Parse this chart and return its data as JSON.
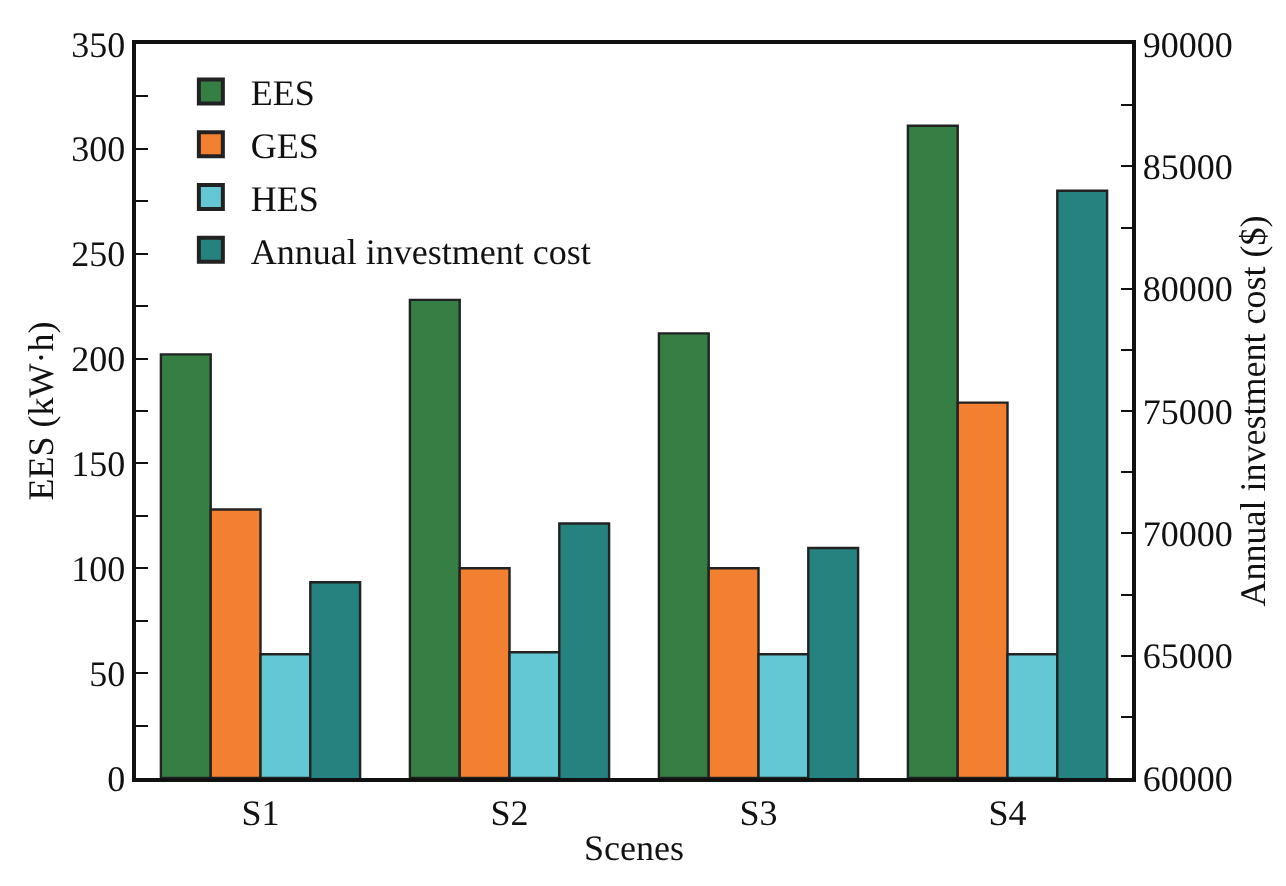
{
  "chart_data": {
    "type": "bar",
    "xlabel": "Scenes",
    "ylabel": "EES (kW·h)",
    "y2label": "Annual investment cost ($)",
    "categories": [
      "S1",
      "S2",
      "S3",
      "S4"
    ],
    "series": [
      {
        "name": "EES",
        "color": "#357f44",
        "values": [
          202,
          228,
          212,
          311
        ]
      },
      {
        "name": "GES",
        "color": "#f28030",
        "values": [
          128,
          100,
          100,
          179
        ]
      },
      {
        "name": "HES",
        "color": "#64c8d4",
        "values": [
          59,
          60,
          59,
          59
        ]
      },
      {
        "name": "Annual investment cost",
        "color": "#26827f",
        "values": [
          68000,
          70400,
          69400,
          84000
        ],
        "axis": "y2"
      }
    ],
    "ylim": [
      0,
      350
    ],
    "yticks": [
      0,
      {
        "value": 25,
        "label": null
      },
      50,
      {
        "value": 75,
        "label": null
      },
      100,
      {
        "value": 125,
        "label": null
      },
      150,
      {
        "value": 175,
        "label": null
      },
      200,
      {
        "value": 225,
        "label": null
      },
      250,
      {
        "value": 275,
        "label": null
      },
      300,
      {
        "value": 325,
        "label": null
      },
      350
    ],
    "y2lim": [
      60000,
      90000
    ],
    "y2ticks": [
      60000,
      {
        "value": 62500,
        "label": null
      },
      65000,
      {
        "value": 67500,
        "label": null
      },
      70000,
      {
        "value": 72500,
        "label": null
      },
      75000,
      {
        "value": 77500,
        "label": null
      },
      80000,
      {
        "value": 82500,
        "label": null
      },
      85000,
      {
        "value": 87500,
        "label": null
      },
      90000
    ],
    "legend": "top left"
  }
}
